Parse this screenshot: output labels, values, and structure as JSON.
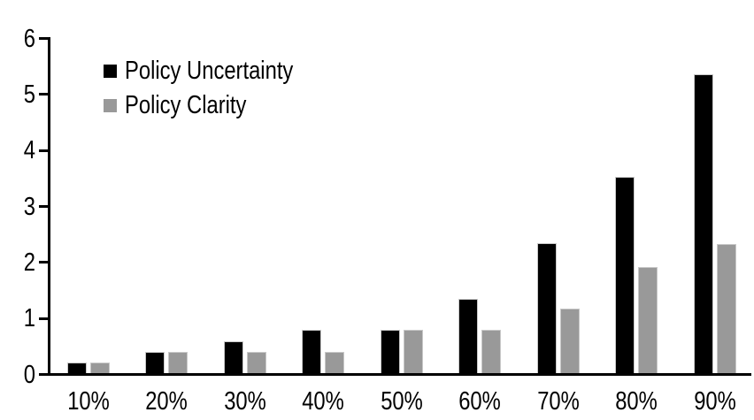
{
  "chart_data": {
    "type": "bar",
    "title": "",
    "xlabel": "",
    "ylabel": "",
    "categories": [
      "10%",
      "20%",
      "30%",
      "40%",
      "50%",
      "60%",
      "70%",
      "80%",
      "90%"
    ],
    "series": [
      {
        "name": "Policy Uncertainty",
        "color": "#000000",
        "values": [
          0.19,
          0.38,
          0.57,
          0.77,
          0.78,
          1.33,
          2.32,
          3.5,
          5.33
        ]
      },
      {
        "name": "Policy Clarity",
        "color": "#999999",
        "values": [
          0.19,
          0.38,
          0.38,
          0.38,
          0.77,
          0.77,
          1.15,
          1.9,
          2.3
        ]
      }
    ],
    "y_ticks": [
      0,
      1,
      2,
      3,
      4,
      5,
      6
    ],
    "ylim": [
      0,
      6
    ],
    "grid": false,
    "legend_position": "upper-left-inside",
    "axis_color": "#000000",
    "background_color": "#ffffff"
  }
}
